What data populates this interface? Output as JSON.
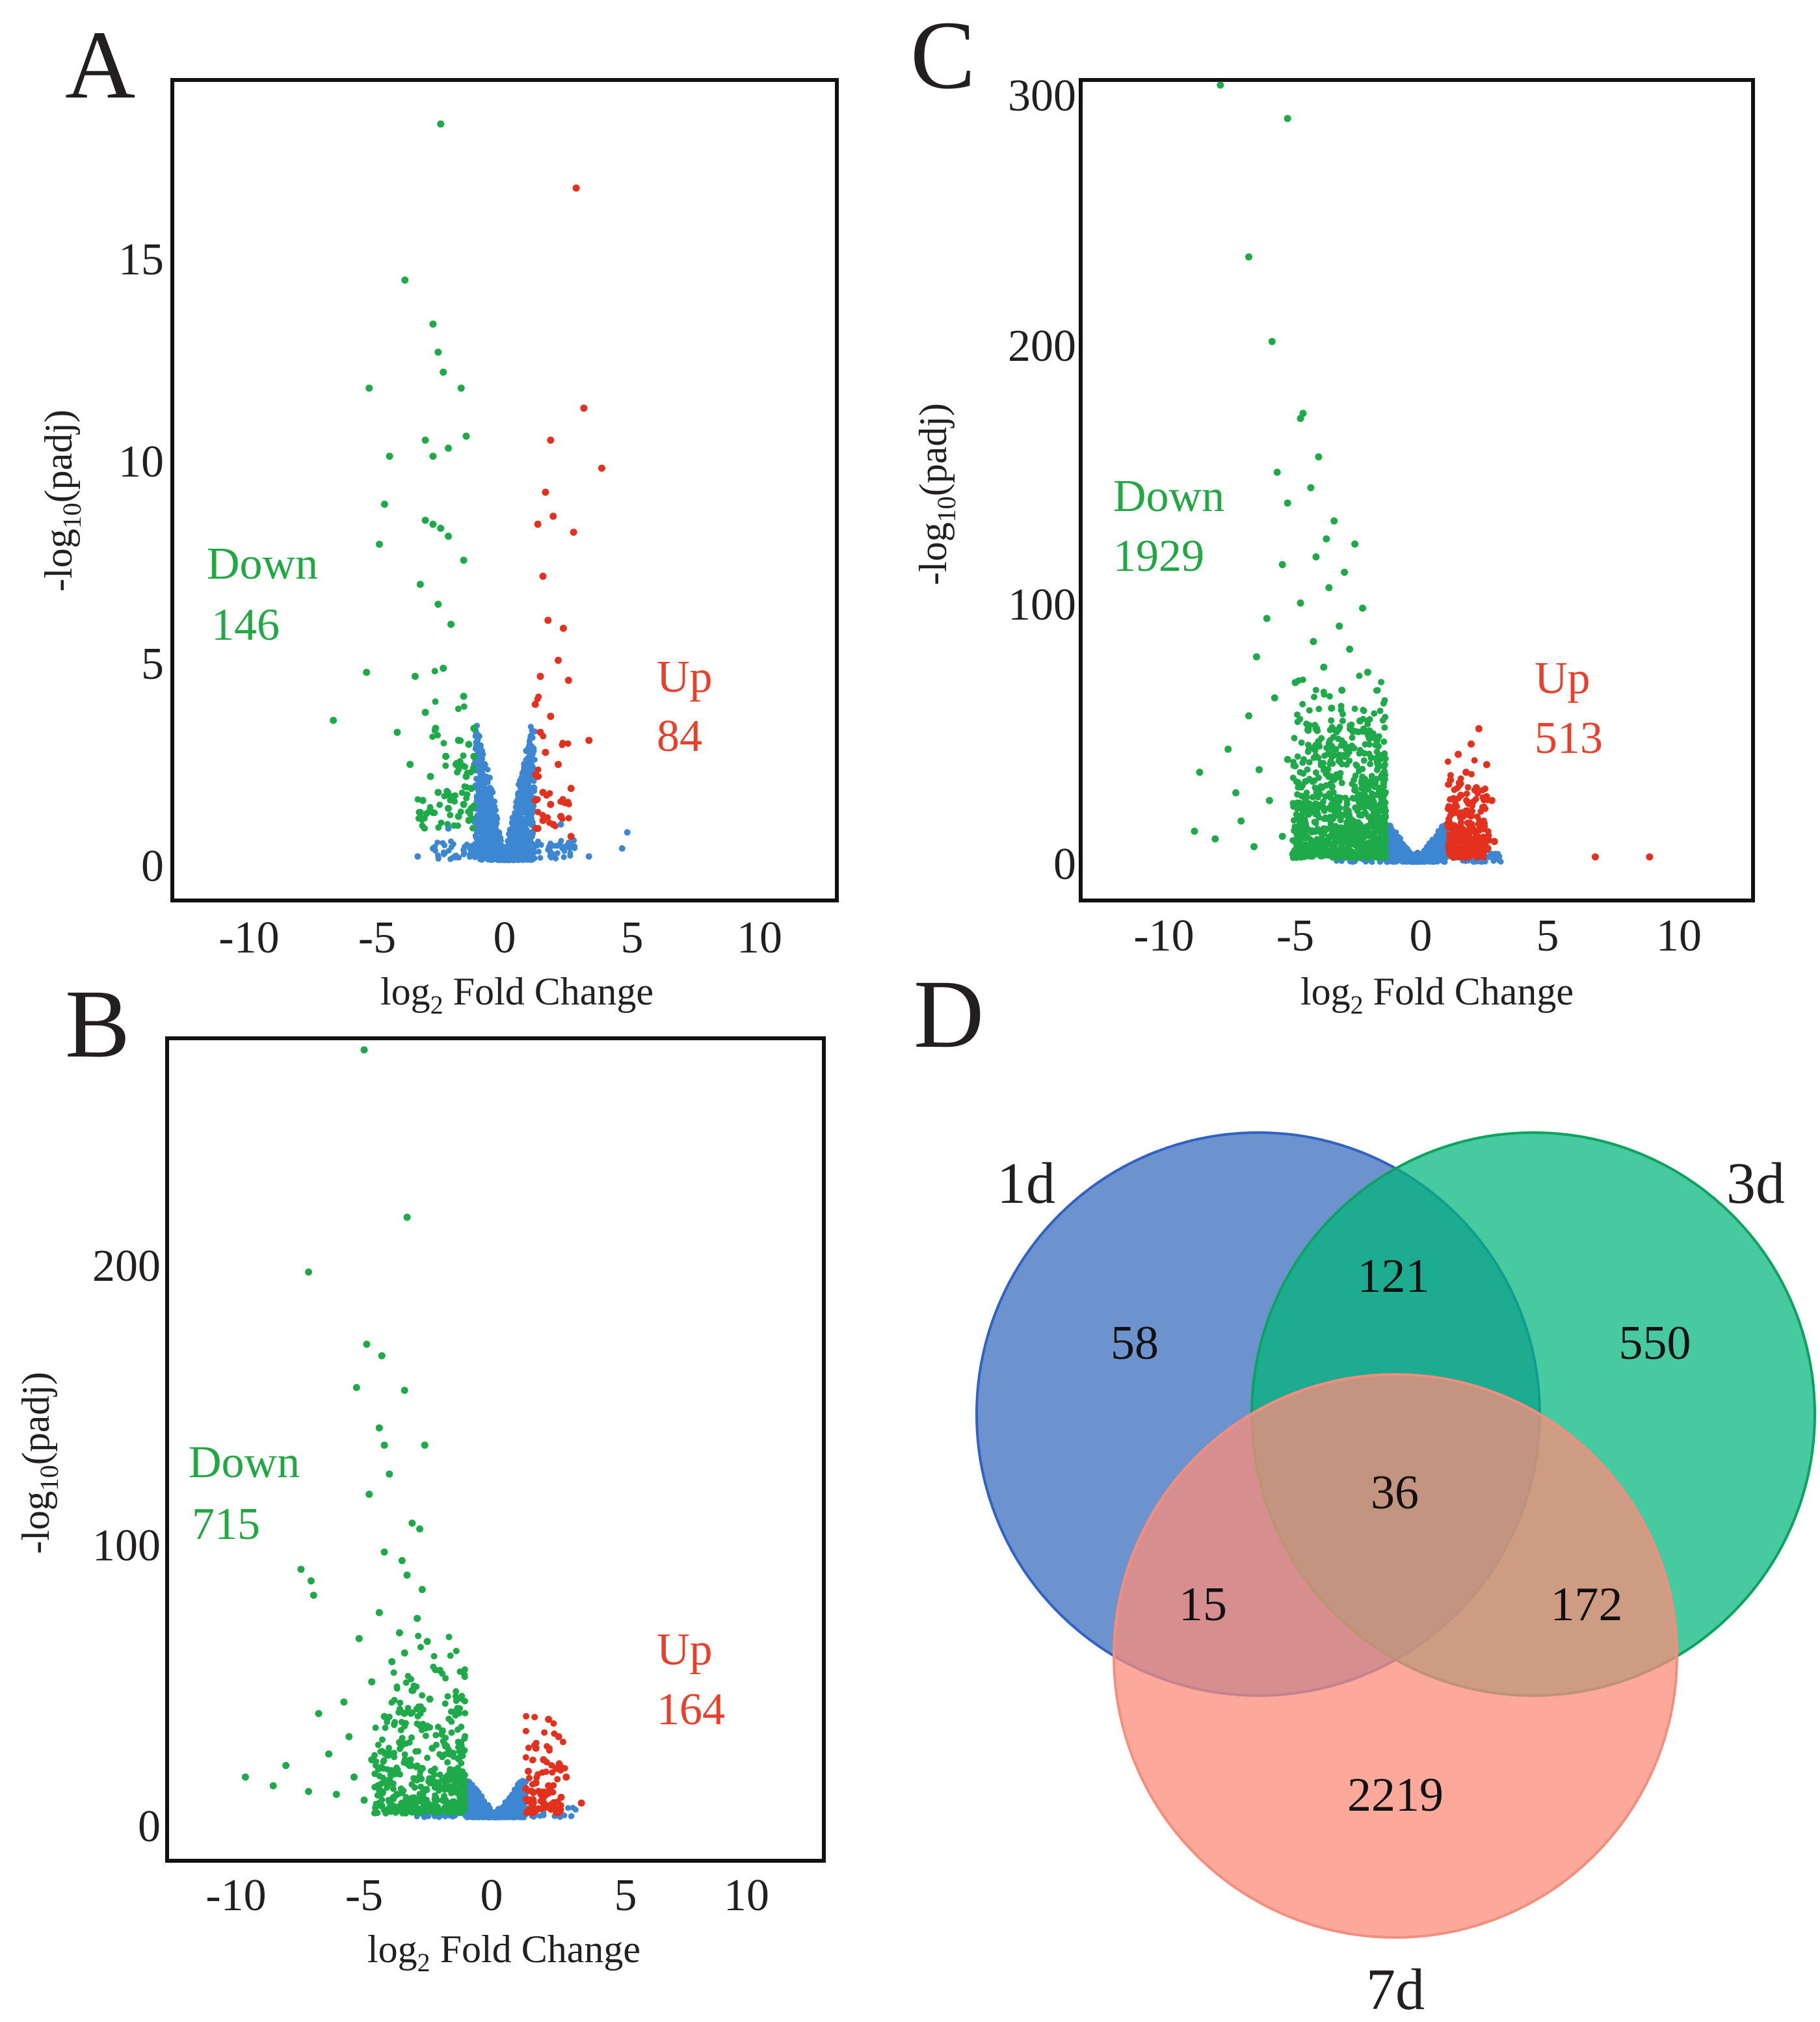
{
  "chart_data": [
    {
      "panel": "A",
      "type": "scatter",
      "title": "",
      "xlabel_main": "log",
      "xlabel_sub": "2",
      "xlabel_rest": " Fold Change",
      "ylabel_main": "-log",
      "ylabel_sub": "10",
      "ylabel_rest": "(padj)",
      "xlim": [
        -13,
        13
      ],
      "ylim": [
        -1,
        19.5
      ],
      "xticks": [
        "-10",
        "-5",
        "0",
        "5",
        "10"
      ],
      "yticks": [
        "0",
        "5",
        "10",
        "15"
      ],
      "down_label": "Down",
      "down_count": "146",
      "up_label": "Up",
      "up_count": "84",
      "colors": {
        "down": "#1faa4a",
        "up": "#e3311e",
        "ns": "#3d86d2"
      },
      "down_points": [
        [
          -2.5,
          18.4
        ],
        [
          -3.9,
          14.5
        ],
        [
          -2.8,
          13.4
        ],
        [
          -2.6,
          12.7
        ],
        [
          -5.3,
          11.8
        ],
        [
          -2.4,
          12.2
        ],
        [
          -1.7,
          11.8
        ],
        [
          -3.1,
          10.5
        ],
        [
          -2.8,
          10.1
        ],
        [
          -4.5,
          10.1
        ],
        [
          -2.2,
          10.3
        ],
        [
          -1.5,
          10.6
        ],
        [
          -4.7,
          8.9
        ],
        [
          -3.1,
          8.5
        ],
        [
          -2.8,
          8.4
        ],
        [
          -2.5,
          8.3
        ],
        [
          -4.9,
          7.9
        ],
        [
          -2.2,
          8.1
        ],
        [
          -1.6,
          7.5
        ],
        [
          -3.3,
          6.9
        ],
        [
          -2.6,
          6.4
        ],
        [
          -2.1,
          5.9
        ],
        [
          -5.4,
          4.7
        ],
        [
          -3.5,
          4.6
        ],
        [
          -2.4,
          4.8
        ],
        [
          -1.6,
          4.1
        ],
        [
          -6.7,
          3.5
        ],
        [
          -4.2,
          3.2
        ],
        [
          -3.1,
          3.7
        ],
        [
          -2.7,
          3.3
        ],
        [
          -1.8,
          3.0
        ],
        [
          -1.4,
          2.9
        ],
        [
          -1.2,
          3.3
        ],
        [
          -3.7,
          2.4
        ],
        [
          -2.9,
          2.1
        ],
        [
          -2.3,
          2.6
        ],
        [
          -1.9,
          2.4
        ],
        [
          -1.5,
          2.1
        ],
        [
          -1.3,
          1.8
        ],
        [
          -1.2,
          2.6
        ],
        [
          -3.2,
          1.5
        ],
        [
          -2.6,
          1.7
        ],
        [
          -2.0,
          1.6
        ],
        [
          -1.6,
          1.4
        ],
        [
          -1.3,
          1.3
        ],
        [
          -3.3,
          1.2
        ],
        [
          -2.8,
          1.2
        ],
        [
          -2.2,
          1.3
        ],
        [
          -1.8,
          1.1
        ],
        [
          -1.4,
          1.0
        ]
      ],
      "up_points": [
        [
          2.8,
          16.8
        ],
        [
          3.1,
          11.3
        ],
        [
          1.8,
          10.5
        ],
        [
          3.8,
          9.8
        ],
        [
          1.6,
          9.2
        ],
        [
          1.9,
          8.6
        ],
        [
          1.3,
          8.4
        ],
        [
          2.7,
          8.2
        ],
        [
          1.5,
          7.1
        ],
        [
          1.7,
          6.0
        ],
        [
          2.3,
          5.8
        ],
        [
          2.1,
          5.0
        ],
        [
          1.4,
          4.6
        ],
        [
          2.5,
          4.5
        ],
        [
          1.2,
          3.9
        ],
        [
          1.8,
          3.6
        ],
        [
          3.3,
          3.0
        ],
        [
          1.4,
          3.2
        ],
        [
          1.6,
          2.7
        ],
        [
          2.1,
          2.4
        ],
        [
          1.3,
          2.1
        ],
        [
          1.5,
          1.7
        ],
        [
          2.6,
          1.8
        ],
        [
          1.8,
          1.4
        ],
        [
          1.2,
          1.5
        ],
        [
          2.2,
          1.1
        ],
        [
          1.5,
          1.0
        ],
        [
          1.9,
          0.9
        ],
        [
          1.3,
          0.8
        ],
        [
          2.6,
          0.6
        ]
      ],
      "ns_points": [
        [
          4.8,
          0.7
        ],
        [
          3.3,
          0.1
        ],
        [
          4.6,
          0.3
        ],
        [
          2.7,
          0.5
        ],
        [
          2.2,
          0.9
        ],
        [
          -2.2,
          0.8
        ],
        [
          -2.8,
          0.3
        ],
        [
          -3.4,
          0.1
        ],
        [
          1.8,
          0.2
        ]
      ]
    },
    {
      "panel": "B",
      "type": "scatter",
      "title": "",
      "xlabel_main": "log",
      "xlabel_sub": "2",
      "xlabel_rest": " Fold Change",
      "ylabel_main": "-log",
      "ylabel_sub": "10",
      "ylabel_rest": "(padj)",
      "xlim": [
        -13,
        13
      ],
      "ylim": [
        -15,
        270
      ],
      "xticks": [
        "-10",
        "-5",
        "0",
        "5",
        "10"
      ],
      "yticks": [
        "0",
        "100",
        "200"
      ],
      "down_label": "Down",
      "down_count": "715",
      "up_label": "Up",
      "up_count": "164",
      "colors": {
        "down": "#1faa4a",
        "up": "#e3311e",
        "ns": "#3d86d2"
      },
      "down_points": [
        [
          -5.2,
          266
        ],
        [
          -3.5,
          208
        ],
        [
          -7.4,
          189
        ],
        [
          -5.1,
          164
        ],
        [
          -4.5,
          160
        ],
        [
          -5.5,
          149
        ],
        [
          -3.6,
          148
        ],
        [
          -4.6,
          135
        ],
        [
          -4.4,
          129
        ],
        [
          -2.8,
          129
        ],
        [
          -4.2,
          119
        ],
        [
          -5.0,
          112
        ],
        [
          -3.3,
          102
        ],
        [
          -3.0,
          100
        ],
        [
          -4.4,
          92
        ],
        [
          -3.7,
          89
        ],
        [
          -7.7,
          86
        ],
        [
          -7.3,
          82
        ],
        [
          -3.5,
          84
        ],
        [
          -2.9,
          79
        ],
        [
          -7.2,
          77
        ],
        [
          -4.6,
          71
        ],
        [
          -3.1,
          69
        ],
        [
          -3.8,
          64
        ],
        [
          -2.7,
          61
        ],
        [
          -5.4,
          62
        ],
        [
          -3.6,
          57
        ],
        [
          -4.1,
          54
        ],
        [
          -2.2,
          51
        ],
        [
          -4.9,
          47
        ],
        [
          -3.3,
          44
        ],
        [
          -2.6,
          41
        ],
        [
          -6.0,
          40
        ],
        [
          -7.0,
          36
        ],
        [
          -4.4,
          35
        ],
        [
          -3.0,
          32
        ],
        [
          -2.1,
          30
        ],
        [
          -5.8,
          28
        ],
        [
          -3.8,
          26
        ],
        [
          -2.5,
          24
        ],
        [
          -6.6,
          22
        ],
        [
          -1.8,
          22
        ],
        [
          -4.9,
          20
        ],
        [
          -3.4,
          18
        ],
        [
          -2.9,
          17
        ],
        [
          -8.3,
          18
        ],
        [
          -1.5,
          16
        ],
        [
          -9.9,
          14
        ],
        [
          -5.6,
          14
        ],
        [
          -4.2,
          13
        ],
        [
          -2.3,
          12
        ],
        [
          -8.8,
          11
        ],
        [
          -7.4,
          9
        ],
        [
          -1.9,
          10
        ],
        [
          -6.3,
          8
        ],
        [
          -3.9,
          8
        ],
        [
          -1.4,
          7
        ],
        [
          -5.2,
          6
        ],
        [
          -2.7,
          5
        ],
        [
          -4.5,
          4
        ],
        [
          -3.1,
          3
        ]
      ],
      "up_points": [
        [
          2.1,
          34
        ],
        [
          2.5,
          28
        ],
        [
          1.6,
          24
        ],
        [
          1.9,
          20
        ],
        [
          2.4,
          17
        ],
        [
          1.3,
          16
        ],
        [
          2.8,
          14
        ],
        [
          1.6,
          12
        ],
        [
          2.1,
          11
        ],
        [
          1.2,
          10
        ],
        [
          1.8,
          8
        ],
        [
          2.6,
          7
        ],
        [
          3.4,
          5
        ],
        [
          1.4,
          6
        ],
        [
          2.2,
          4
        ],
        [
          1.7,
          3
        ]
      ],
      "ns_points": [
        [
          -0.9,
          7
        ],
        [
          -0.6,
          3
        ],
        [
          0.7,
          5
        ],
        [
          0.9,
          8
        ],
        [
          -1.0,
          11
        ],
        [
          1.0,
          2
        ]
      ]
    },
    {
      "panel": "C",
      "type": "scatter",
      "title": "",
      "xlabel_main": "log",
      "xlabel_sub": "2",
      "xlabel_rest": " Fold Change",
      "ylabel_main": "-log",
      "ylabel_sub": "10",
      "ylabel_rest": "(padj)",
      "xlim": [
        -13,
        13
      ],
      "ylim": [
        -15,
        305
      ],
      "xticks": [
        "-10",
        "-5",
        "0",
        "5",
        "10"
      ],
      "yticks": [
        "0",
        "100",
        "200",
        "300"
      ],
      "down_label": "Down",
      "down_count": "1929",
      "up_label": "Up",
      "up_count": "513",
      "colors": {
        "down": "#1faa4a",
        "up": "#e3311e",
        "ns": "#3d86d2"
      },
      "down_points": [
        [
          -7.6,
          303
        ],
        [
          -5.0,
          290
        ],
        [
          -6.5,
          236
        ],
        [
          -5.6,
          203
        ],
        [
          -4.4,
          175
        ],
        [
          -4.5,
          173
        ],
        [
          -3.8,
          158
        ],
        [
          -5.4,
          152
        ],
        [
          -4.1,
          146
        ],
        [
          -5.0,
          140
        ],
        [
          -3.2,
          133
        ],
        [
          -3.5,
          126
        ],
        [
          -2.4,
          124
        ],
        [
          -3.9,
          119
        ],
        [
          -5.2,
          116
        ],
        [
          -2.8,
          113
        ],
        [
          -3.4,
          107
        ],
        [
          -4.5,
          101
        ],
        [
          -2.1,
          99
        ],
        [
          -5.8,
          95
        ],
        [
          -3.0,
          92
        ],
        [
          -4.0,
          86
        ],
        [
          -2.6,
          83
        ],
        [
          -6.2,
          80
        ],
        [
          -3.6,
          76
        ],
        [
          -1.9,
          74
        ],
        [
          -4.7,
          70
        ],
        [
          -2.9,
          67
        ],
        [
          -5.5,
          64
        ],
        [
          -3.3,
          60
        ],
        [
          -6.5,
          57
        ],
        [
          -2.2,
          55
        ],
        [
          -4.2,
          52
        ],
        [
          -1.7,
          50
        ],
        [
          -3.8,
          47
        ],
        [
          -7.3,
          44
        ],
        [
          -2.7,
          42
        ],
        [
          -5.0,
          40
        ],
        [
          -1.5,
          38
        ],
        [
          -6.1,
          36
        ],
        [
          -3.1,
          34
        ],
        [
          -4.6,
          31
        ],
        [
          -8.4,
          35
        ],
        [
          -2.4,
          28
        ],
        [
          -7.0,
          27
        ],
        [
          -1.3,
          26
        ],
        [
          -5.7,
          24
        ],
        [
          -3.6,
          21
        ],
        [
          -2.0,
          19
        ],
        [
          -8.6,
          12
        ],
        [
          -6.8,
          16
        ],
        [
          -4.3,
          14
        ],
        [
          -1.6,
          13
        ],
        [
          -7.8,
          9
        ],
        [
          -5.2,
          10
        ],
        [
          -2.8,
          8
        ],
        [
          -6.3,
          6
        ],
        [
          -3.9,
          5
        ],
        [
          -1.4,
          6
        ],
        [
          -4.8,
          3
        ],
        [
          -2.3,
          3
        ]
      ],
      "up_points": [
        [
          2.4,
          52
        ],
        [
          2.1,
          46
        ],
        [
          1.6,
          42
        ],
        [
          2.7,
          38
        ],
        [
          1.9,
          35
        ],
        [
          1.3,
          32
        ],
        [
          2.3,
          29
        ],
        [
          1.7,
          26
        ],
        [
          2.9,
          24
        ],
        [
          1.4,
          21
        ],
        [
          2.1,
          18
        ],
        [
          1.2,
          15
        ],
        [
          2.6,
          13
        ],
        [
          1.8,
          10
        ],
        [
          3.0,
          8
        ],
        [
          1.4,
          6
        ],
        [
          2.3,
          4
        ],
        [
          6.9,
          2
        ],
        [
          9.0,
          2
        ]
      ],
      "ns_points": [
        [
          -1.0,
          6
        ],
        [
          -0.7,
          2
        ],
        [
          0.7,
          4
        ],
        [
          1.0,
          9
        ],
        [
          2.8,
          2
        ],
        [
          0.4,
          1
        ]
      ]
    }
  ],
  "panels": {
    "A": {
      "letter": "A"
    },
    "B": {
      "letter": "B"
    },
    "C": {
      "letter": "C"
    },
    "D": {
      "letter": "D"
    }
  },
  "venn": {
    "sets": [
      {
        "name": "1d",
        "color": "#3c6fbd"
      },
      {
        "name": "3d",
        "color": "#00b67a"
      },
      {
        "name": "7d",
        "color": "#fb8c7a"
      }
    ],
    "regions": {
      "only_1d": "58",
      "only_3d": "550",
      "only_7d": "2219",
      "d1_d3": "121",
      "d1_d7": "15",
      "d3_d7": "172",
      "all": "36"
    }
  }
}
